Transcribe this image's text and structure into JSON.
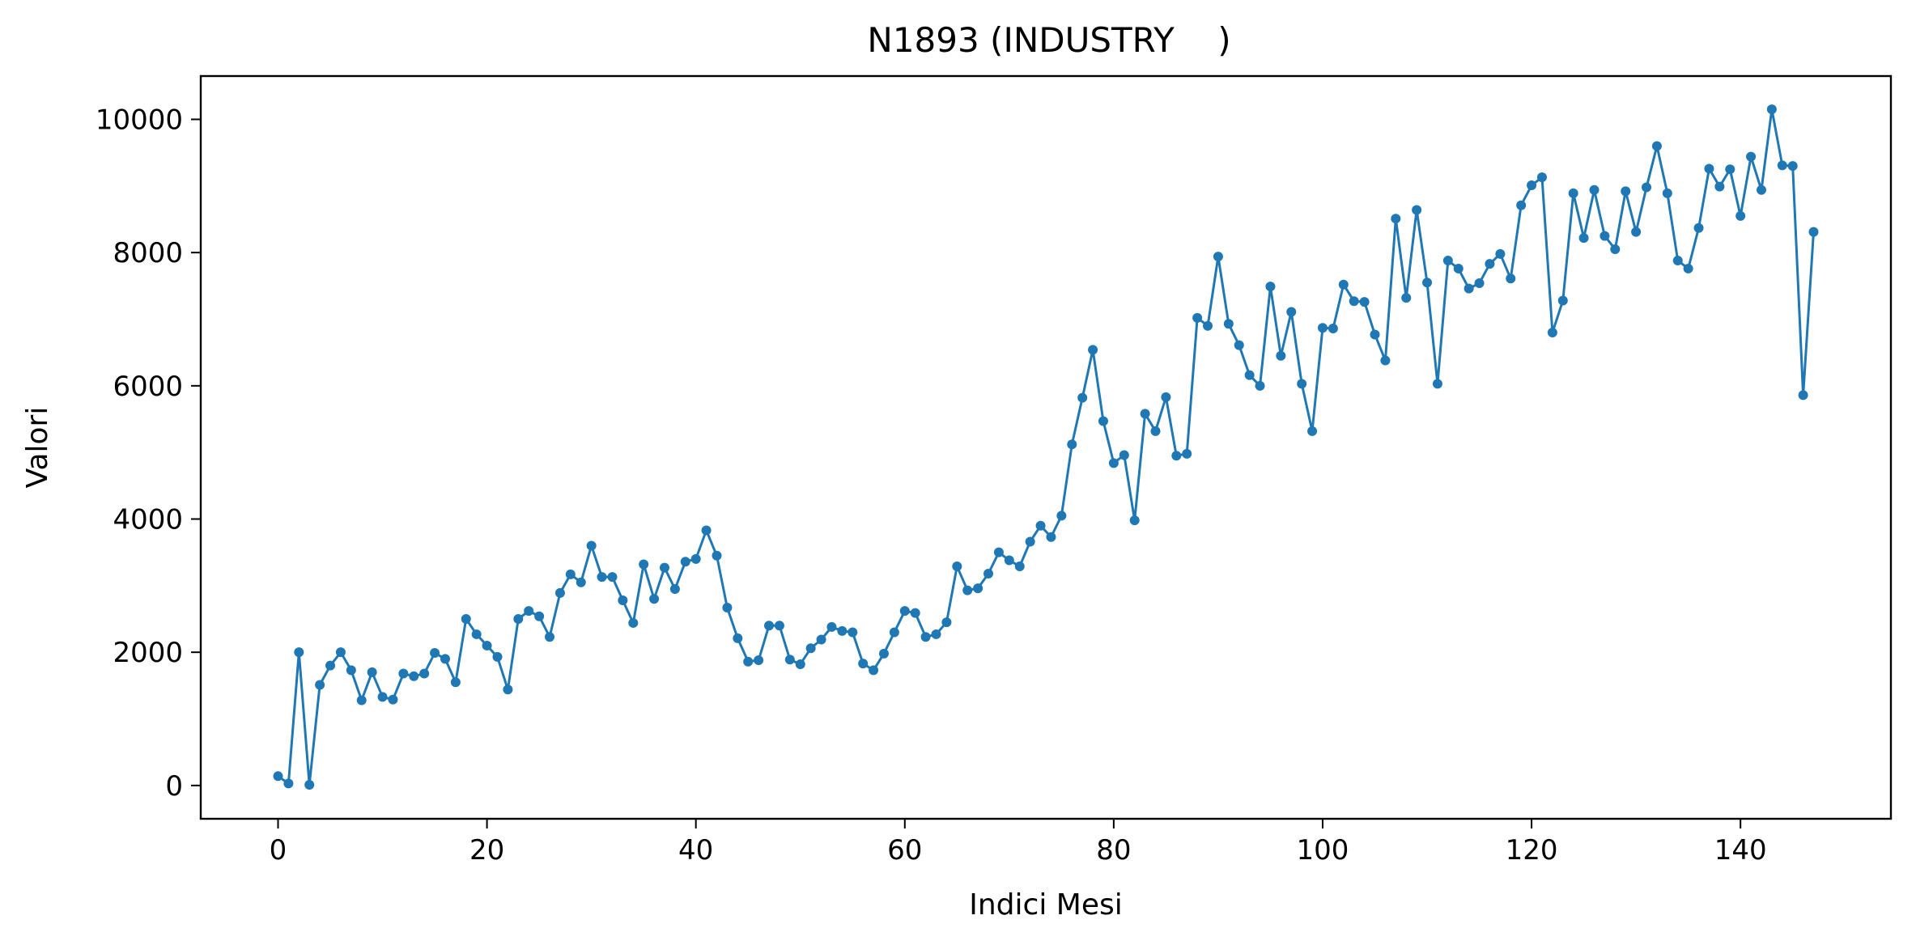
{
  "chart_data": {
    "type": "line",
    "title": "N1893 (INDUSTRY    )",
    "xlabel": "Indici Mesi",
    "ylabel": "Valori",
    "xlim": [
      -7.4,
      154.4
    ],
    "ylim": [
      -500,
      10650
    ],
    "xticks": [
      0,
      20,
      40,
      60,
      80,
      100,
      120,
      140
    ],
    "yticks": [
      0,
      2000,
      4000,
      6000,
      8000,
      10000
    ],
    "grid": false,
    "legend": "none",
    "colors": {
      "line": "#1f77b4"
    },
    "series": [
      {
        "marker": "circle",
        "x": [
          0,
          1,
          2,
          3,
          4,
          5,
          6,
          7,
          8,
          9,
          10,
          11,
          12,
          13,
          14,
          15,
          16,
          17,
          18,
          19,
          20,
          21,
          22,
          23,
          24,
          25,
          26,
          27,
          28,
          29,
          30,
          31,
          32,
          33,
          34,
          35,
          36,
          37,
          38,
          39,
          40,
          41,
          42,
          43,
          44,
          45,
          46,
          47,
          48,
          49,
          50,
          51,
          52,
          53,
          54,
          55,
          56,
          57,
          58,
          59,
          60,
          61,
          62,
          63,
          64,
          65,
          66,
          67,
          68,
          69,
          70,
          71,
          72,
          73,
          74,
          75,
          76,
          77,
          78,
          79,
          80,
          81,
          82,
          83,
          84,
          85,
          86,
          87,
          88,
          89,
          90,
          91,
          92,
          93,
          94,
          95,
          96,
          97,
          98,
          99,
          100,
          101,
          102,
          103,
          104,
          105,
          106,
          107,
          108,
          109,
          110,
          111,
          112,
          113,
          114,
          115,
          116,
          117,
          118,
          119,
          120,
          121,
          122,
          123,
          124,
          125,
          126,
          127,
          128,
          129,
          130,
          131,
          132,
          133,
          134,
          135,
          136,
          137,
          138,
          139,
          140,
          141,
          142,
          143,
          144,
          145,
          146,
          147
        ],
        "values": [
          140,
          30,
          2000,
          10,
          1510,
          1800,
          2000,
          1730,
          1280,
          1700,
          1330,
          1290,
          1680,
          1640,
          1680,
          1990,
          1900,
          1550,
          2500,
          2270,
          2100,
          1930,
          1440,
          2500,
          2620,
          2540,
          2230,
          2890,
          3170,
          3050,
          3600,
          3130,
          3130,
          2780,
          2440,
          3320,
          2800,
          3270,
          2950,
          3360,
          3400,
          3830,
          3450,
          2670,
          2210,
          1860,
          1880,
          2400,
          2400,
          1890,
          1820,
          2060,
          2190,
          2380,
          2320,
          2300,
          1830,
          1730,
          1980,
          2300,
          2620,
          2590,
          2230,
          2270,
          2450,
          3290,
          2930,
          2960,
          3180,
          3500,
          3380,
          3290,
          3660,
          3900,
          3730,
          4050,
          5120,
          5820,
          6540,
          5470,
          4840,
          4960,
          3980,
          5580,
          5320,
          5830,
          4950,
          4980,
          7020,
          6900,
          7940,
          6930,
          6610,
          6160,
          6000,
          7490,
          6450,
          7110,
          6030,
          5320,
          6870,
          6860,
          7520,
          7270,
          7260,
          6770,
          6380,
          8510,
          7320,
          8640,
          7550,
          6030,
          7880,
          7760,
          7460,
          7540,
          7830,
          7980,
          7610,
          8710,
          9010,
          9130,
          6800,
          7280,
          8890,
          8220,
          8940,
          8250,
          8050,
          8920,
          8310,
          8980,
          9600,
          8890,
          7880,
          7760,
          8370,
          9260,
          8990,
          9250,
          8550,
          9440,
          8940,
          10150,
          9310,
          9300,
          5860,
          8310
        ]
      }
    ]
  }
}
